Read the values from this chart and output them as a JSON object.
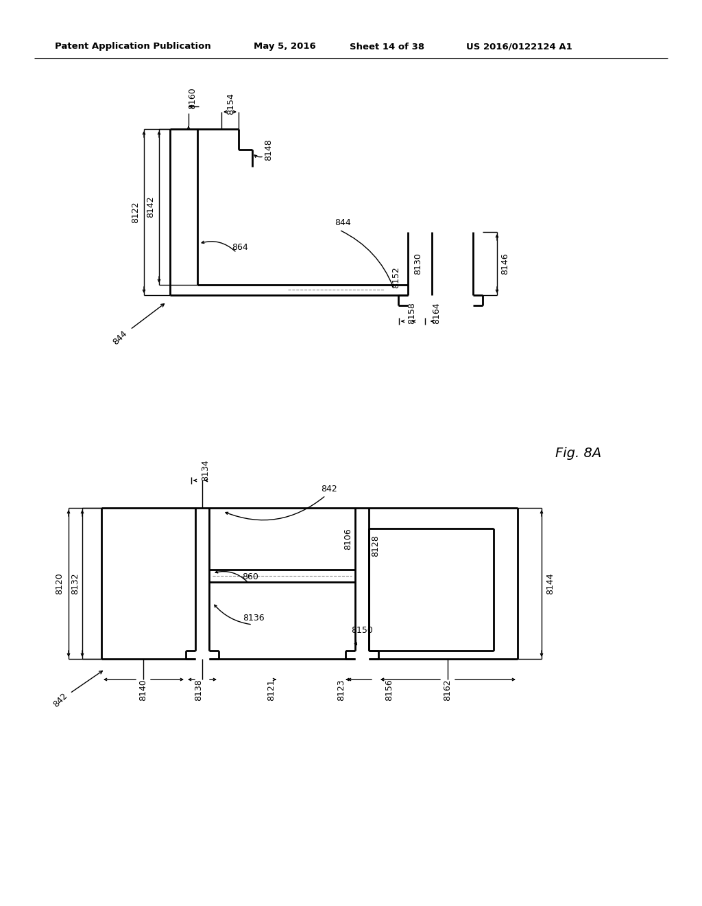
{
  "bg_color": "#ffffff",
  "header_text": "Patent Application Publication",
  "header_date": "May 5, 2016",
  "header_sheet": "Sheet 14 of 38",
  "header_patent": "US 2016/0122124 A1",
  "fig_label": "Fig. 8A"
}
